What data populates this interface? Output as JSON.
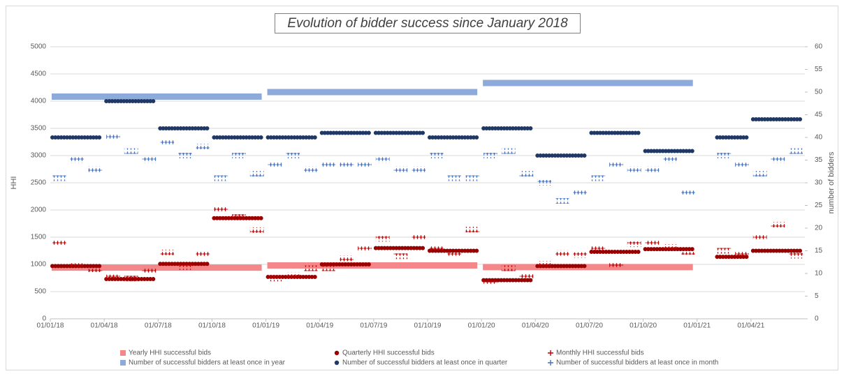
{
  "chart_data": {
    "type": "segments",
    "title": "Evolution of bidder success since January 2018",
    "y_label": "HHI",
    "y2_label": "number of bidders",
    "xlim": [
      0,
      42
    ],
    "xticks": [
      {
        "value": 0,
        "label": "01/01/18"
      },
      {
        "value": 3,
        "label": "01/04/18"
      },
      {
        "value": 6,
        "label": "01/07/18"
      },
      {
        "value": 9,
        "label": "01/10/18"
      },
      {
        "value": 12,
        "label": "01/01/19"
      },
      {
        "value": 15,
        "label": "01/04/19"
      },
      {
        "value": 18,
        "label": "01/07/19"
      },
      {
        "value": 21,
        "label": "01/10/19"
      },
      {
        "value": 24,
        "label": "01/01/20"
      },
      {
        "value": 27,
        "label": "01/04/20"
      },
      {
        "value": 30,
        "label": "01/07/20"
      },
      {
        "value": 33,
        "label": "01/10/20"
      },
      {
        "value": 36,
        "label": "01/01/21"
      },
      {
        "value": 39,
        "label": "01/04/21"
      }
    ],
    "ylim": [
      0,
      5000
    ],
    "yticks": [
      0,
      500,
      1000,
      1500,
      2000,
      2500,
      3000,
      3500,
      4000,
      4500,
      5000
    ],
    "y2lim": [
      0,
      60
    ],
    "y2ticks": [
      0,
      5,
      10,
      15,
      20,
      25,
      30,
      35,
      40,
      45,
      50,
      55,
      60
    ],
    "grid": true,
    "series": [
      {
        "name": "Yearly HHI successful bids",
        "color": "#f4878a",
        "marker": "bar",
        "bins": [
          0,
          12,
          24,
          36
        ],
        "values": [
          940,
          980,
          950
        ]
      },
      {
        "name": "Quarterly HHI successful bids",
        "color": "#9b0000",
        "marker": "circle",
        "bins": [
          0,
          3,
          6,
          9,
          12,
          15,
          18,
          21,
          24,
          27,
          30,
          33,
          36,
          37,
          39,
          42
        ],
        "values": [
          970,
          730,
          1010,
          1850,
          770,
          1000,
          1300,
          1250,
          710,
          970,
          1230,
          1280,
          null,
          1140,
          1250
        ]
      },
      {
        "name": "Monthly HHI successful bids",
        "color": "#c00000",
        "marker": "plus",
        "bins": [
          0,
          1,
          2,
          3,
          4,
          5,
          6,
          7,
          8,
          9,
          10,
          11,
          12,
          13,
          14,
          15,
          16,
          17,
          18,
          19,
          20,
          21,
          22,
          23,
          24,
          25,
          26,
          27,
          28,
          29,
          30,
          31,
          32,
          33,
          34,
          35,
          36,
          37,
          38,
          39,
          40,
          41,
          42
        ],
        "values": [
          1390,
          970,
          910,
          760,
          740,
          900,
          1220,
          950,
          1190,
          2000,
          1870,
          1630,
          740,
          800,
          930,
          930,
          1110,
          1280,
          1470,
          1150,
          1490,
          1280,
          1210,
          1640,
          690,
          930,
          790,
          1010,
          1210,
          1170,
          1280,
          990,
          1370,
          1410,
          1320,
          1230,
          null,
          1250,
          1180,
          1510,
          1730,
          1160
        ]
      },
      {
        "name": "Number of successful bidders at least once in year",
        "color": "#8eaadb",
        "marker": "bar",
        "axis": "y2",
        "bins": [
          0,
          12,
          24,
          36
        ],
        "values": [
          49,
          50,
          52
        ]
      },
      {
        "name": "Number of successful bidders at least once in quarter",
        "color": "#1f3864",
        "marker": "circle",
        "axis": "y2",
        "bins": [
          0,
          3,
          6,
          9,
          12,
          15,
          18,
          21,
          24,
          27,
          30,
          33,
          36,
          37,
          39,
          42
        ],
        "values": [
          40,
          48,
          42,
          40,
          40,
          41,
          41,
          40,
          42,
          36,
          41,
          37,
          null,
          40,
          44
        ]
      },
      {
        "name": "Number of successful bidders at least once in month",
        "color": "#4472c4",
        "marker": "plus",
        "axis": "y2",
        "bins": [
          0,
          1,
          2,
          3,
          4,
          5,
          6,
          7,
          8,
          9,
          10,
          11,
          12,
          13,
          14,
          15,
          16,
          17,
          18,
          19,
          20,
          21,
          22,
          23,
          24,
          25,
          26,
          27,
          28,
          29,
          30,
          31,
          32,
          33,
          34,
          35,
          36,
          37,
          38,
          39,
          40,
          41,
          42
        ],
        "values": [
          31,
          35,
          33,
          40,
          37,
          35,
          39,
          36,
          38,
          31,
          36,
          32,
          34,
          36,
          33,
          34,
          34,
          34,
          35,
          33,
          33,
          36,
          31,
          31,
          36,
          37,
          32,
          30,
          26,
          28,
          31,
          34,
          33,
          33,
          35,
          28,
          null,
          36,
          34,
          32,
          35,
          37
        ]
      }
    ]
  }
}
